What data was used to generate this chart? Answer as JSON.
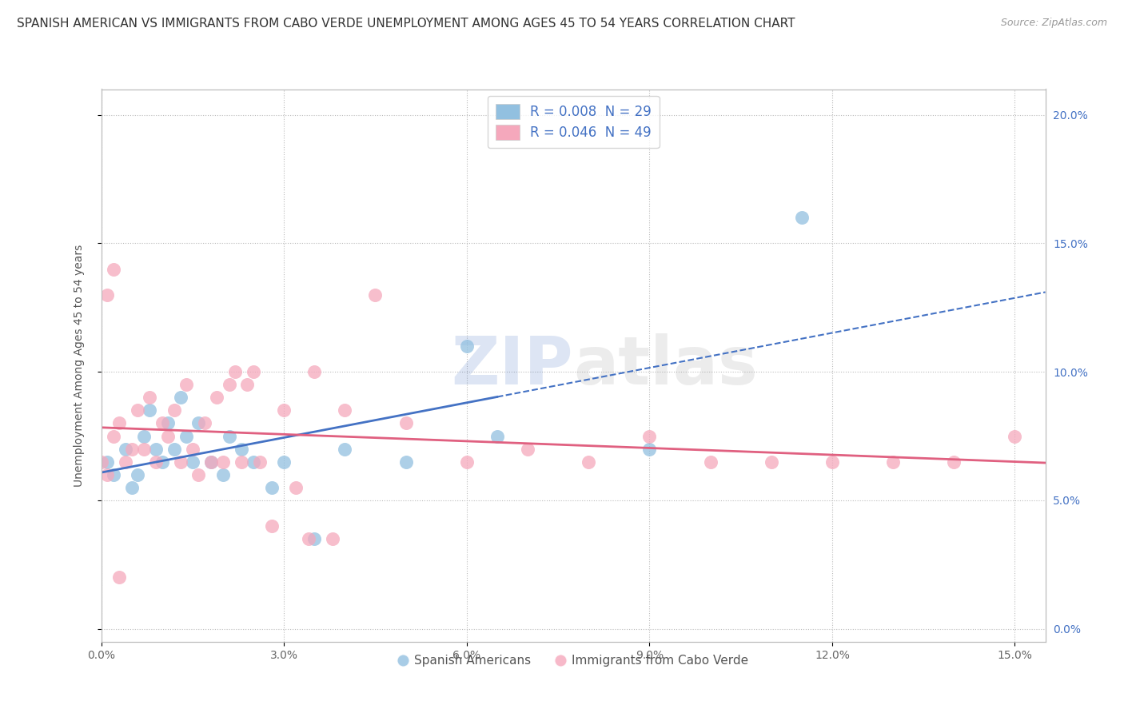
{
  "title": "SPANISH AMERICAN VS IMMIGRANTS FROM CABO VERDE UNEMPLOYMENT AMONG AGES 45 TO 54 YEARS CORRELATION CHART",
  "source": "Source: ZipAtlas.com",
  "ylabel": "Unemployment Among Ages 45 to 54 years",
  "xlim": [
    0.0,
    0.155
  ],
  "ylim": [
    -0.005,
    0.21
  ],
  "xtick_vals": [
    0.0,
    0.03,
    0.06,
    0.09,
    0.12,
    0.15
  ],
  "xtick_labels": [
    "0.0%",
    "3.0%",
    "6.0%",
    "9.0%",
    "12.0%",
    "15.0%"
  ],
  "ytick_vals": [
    0.0,
    0.05,
    0.1,
    0.15,
    0.2
  ],
  "ytick_labels": [
    "0.0%",
    "5.0%",
    "10.0%",
    "15.0%",
    "20.0%"
  ],
  "legend1_label": "R = 0.008  N = 29",
  "legend2_label": "R = 0.046  N = 49",
  "series1_label": "Spanish Americans",
  "series2_label": "Immigrants from Cabo Verde",
  "series1_color": "#92C0E0",
  "series2_color": "#F5A8BC",
  "series1_line_color": "#4472C4",
  "series2_line_color": "#E06080",
  "watermark_text": "ZIPatlas",
  "title_fontsize": 11,
  "label_fontsize": 10,
  "tick_fontsize": 10,
  "legend_fontsize": 12,
  "s1_x": [
    0.001,
    0.002,
    0.004,
    0.005,
    0.006,
    0.007,
    0.008,
    0.009,
    0.01,
    0.011,
    0.012,
    0.013,
    0.014,
    0.015,
    0.016,
    0.018,
    0.02,
    0.021,
    0.023,
    0.025,
    0.028,
    0.03,
    0.035,
    0.04,
    0.05,
    0.06,
    0.065,
    0.09,
    0.115
  ],
  "s1_y": [
    0.065,
    0.06,
    0.07,
    0.055,
    0.06,
    0.075,
    0.085,
    0.07,
    0.065,
    0.08,
    0.07,
    0.09,
    0.075,
    0.065,
    0.08,
    0.065,
    0.06,
    0.075,
    0.07,
    0.065,
    0.055,
    0.065,
    0.035,
    0.07,
    0.065,
    0.11,
    0.075,
    0.07,
    0.16
  ],
  "s2_x": [
    0.0,
    0.001,
    0.002,
    0.003,
    0.004,
    0.005,
    0.006,
    0.007,
    0.008,
    0.009,
    0.01,
    0.011,
    0.012,
    0.013,
    0.014,
    0.015,
    0.016,
    0.017,
    0.018,
    0.019,
    0.02,
    0.021,
    0.022,
    0.023,
    0.024,
    0.025,
    0.026,
    0.028,
    0.03,
    0.032,
    0.034,
    0.035,
    0.038,
    0.04,
    0.045,
    0.05,
    0.06,
    0.07,
    0.08,
    0.09,
    0.1,
    0.11,
    0.12,
    0.13,
    0.14,
    0.15,
    0.001,
    0.002,
    0.003
  ],
  "s2_y": [
    0.065,
    0.06,
    0.075,
    0.08,
    0.065,
    0.07,
    0.085,
    0.07,
    0.09,
    0.065,
    0.08,
    0.075,
    0.085,
    0.065,
    0.095,
    0.07,
    0.06,
    0.08,
    0.065,
    0.09,
    0.065,
    0.095,
    0.1,
    0.065,
    0.095,
    0.1,
    0.065,
    0.04,
    0.085,
    0.055,
    0.035,
    0.1,
    0.035,
    0.085,
    0.13,
    0.08,
    0.065,
    0.07,
    0.065,
    0.075,
    0.065,
    0.065,
    0.065,
    0.065,
    0.065,
    0.075,
    0.13,
    0.14,
    0.02
  ]
}
